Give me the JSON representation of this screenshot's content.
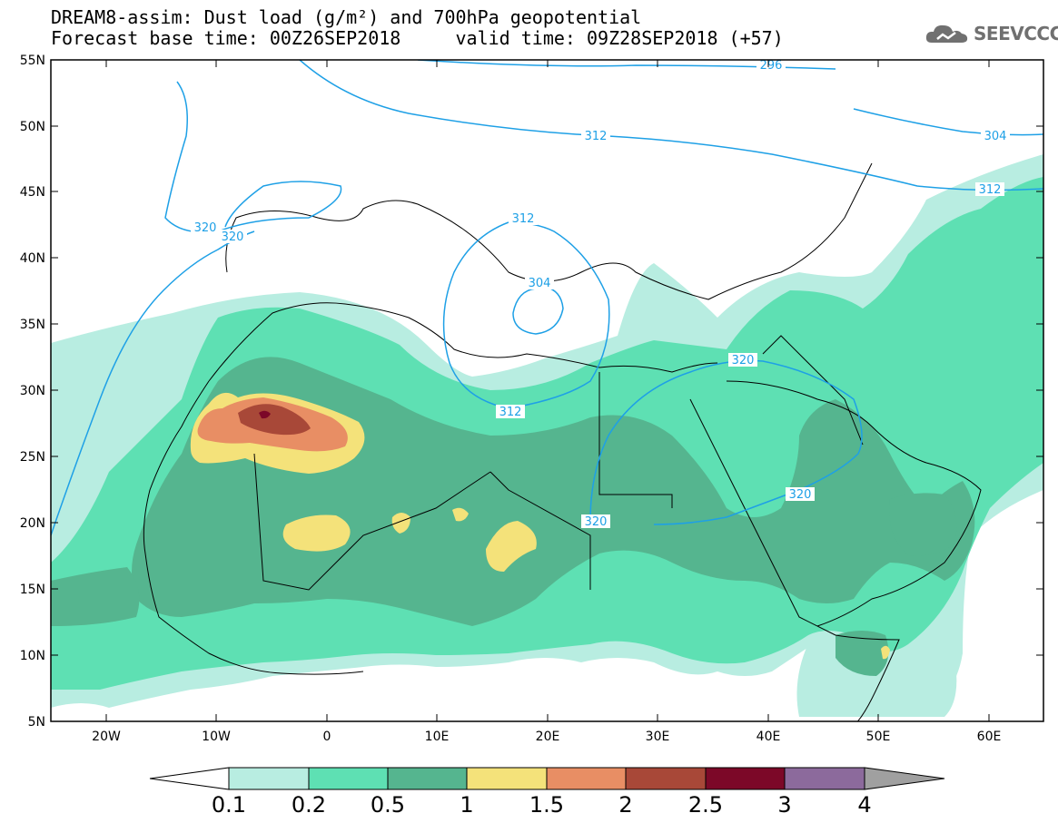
{
  "title": {
    "line1": "DREAM8-assim: Dust load (g/m²) and 700hPa geopotential",
    "line2": "Forecast base time: 00Z26SEP2018     valid time: 09Z28SEP2018 (+57)"
  },
  "logo": {
    "text": "SEEVCCC",
    "icon": "cloud-icon"
  },
  "map": {
    "lon_range": [
      -25,
      65
    ],
    "lat_range": [
      5,
      55
    ],
    "lat_ticks": [
      "55N",
      "50N",
      "45N",
      "40N",
      "35N",
      "30N",
      "25N",
      "20N",
      "15N",
      "10N",
      "5N"
    ],
    "lon_ticks": [
      "20W",
      "10W",
      "0",
      "10E",
      "20E",
      "30E",
      "40E",
      "50E",
      "60E"
    ],
    "contour_labels": [
      "296",
      "312",
      "304",
      "312",
      "320",
      "320",
      "312",
      "304",
      "312",
      "320",
      "320",
      "320"
    ],
    "contour_color": "#1ea0e6"
  },
  "colorbar": {
    "labels": [
      "0.1",
      "0.2",
      "0.5",
      "1",
      "1.5",
      "2",
      "2.5",
      "3",
      "4"
    ],
    "colors": [
      "#b8ede1",
      "#5ee0b3",
      "#55b58f",
      "#f4e27a",
      "#e88e64",
      "#a84838",
      "#7c0828",
      "#8c6a9c",
      "#a0a0a0"
    ]
  }
}
